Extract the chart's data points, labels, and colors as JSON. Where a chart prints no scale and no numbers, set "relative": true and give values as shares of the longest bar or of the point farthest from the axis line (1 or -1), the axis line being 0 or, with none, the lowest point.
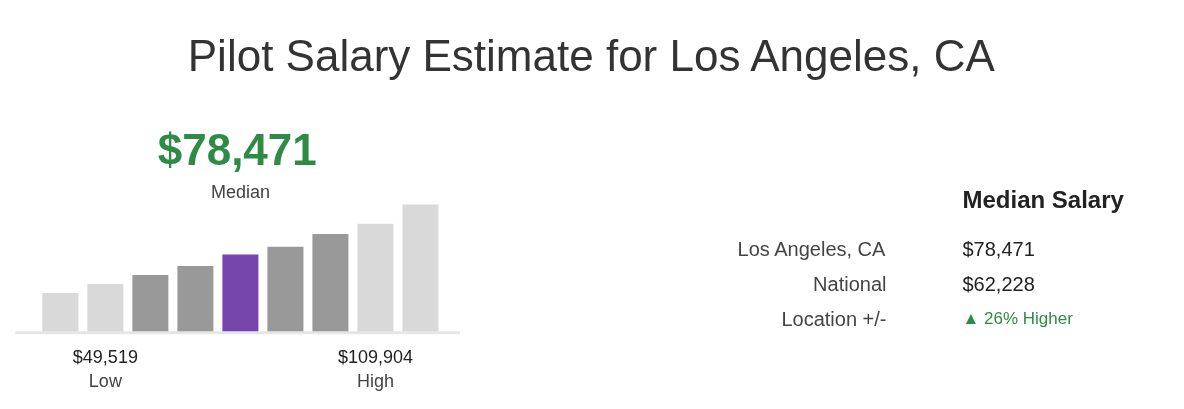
{
  "chart_data": [
    {
      "type": "bar",
      "title": "Pilot Salary Estimate for Los Angeles, CA",
      "relative": true,
      "categories": [
        null,
        null,
        null,
        null,
        null,
        null,
        null,
        null,
        null
      ],
      "values": [
        0.31,
        0.38,
        0.45,
        0.52,
        0.61,
        0.67,
        0.77,
        0.85,
        1.0
      ],
      "colors": [
        "#d9d9d9",
        "#d9d9d9",
        "#999999",
        "#999999",
        "#7545ab",
        "#999999",
        "#999999",
        "#d9d9d9",
        "#d9d9d9"
      ],
      "annotations": [
        "$78,471",
        "Median",
        "$49,519",
        "Low",
        "$109,904",
        "High"
      ]
    },
    {
      "type": "other",
      "title": "Median Salary",
      "annotations": [
        "Los Angeles, CA",
        "$78,471",
        "National",
        "$62,228",
        "Location +/-",
        "▲ 26% Higher"
      ]
    }
  ]
}
